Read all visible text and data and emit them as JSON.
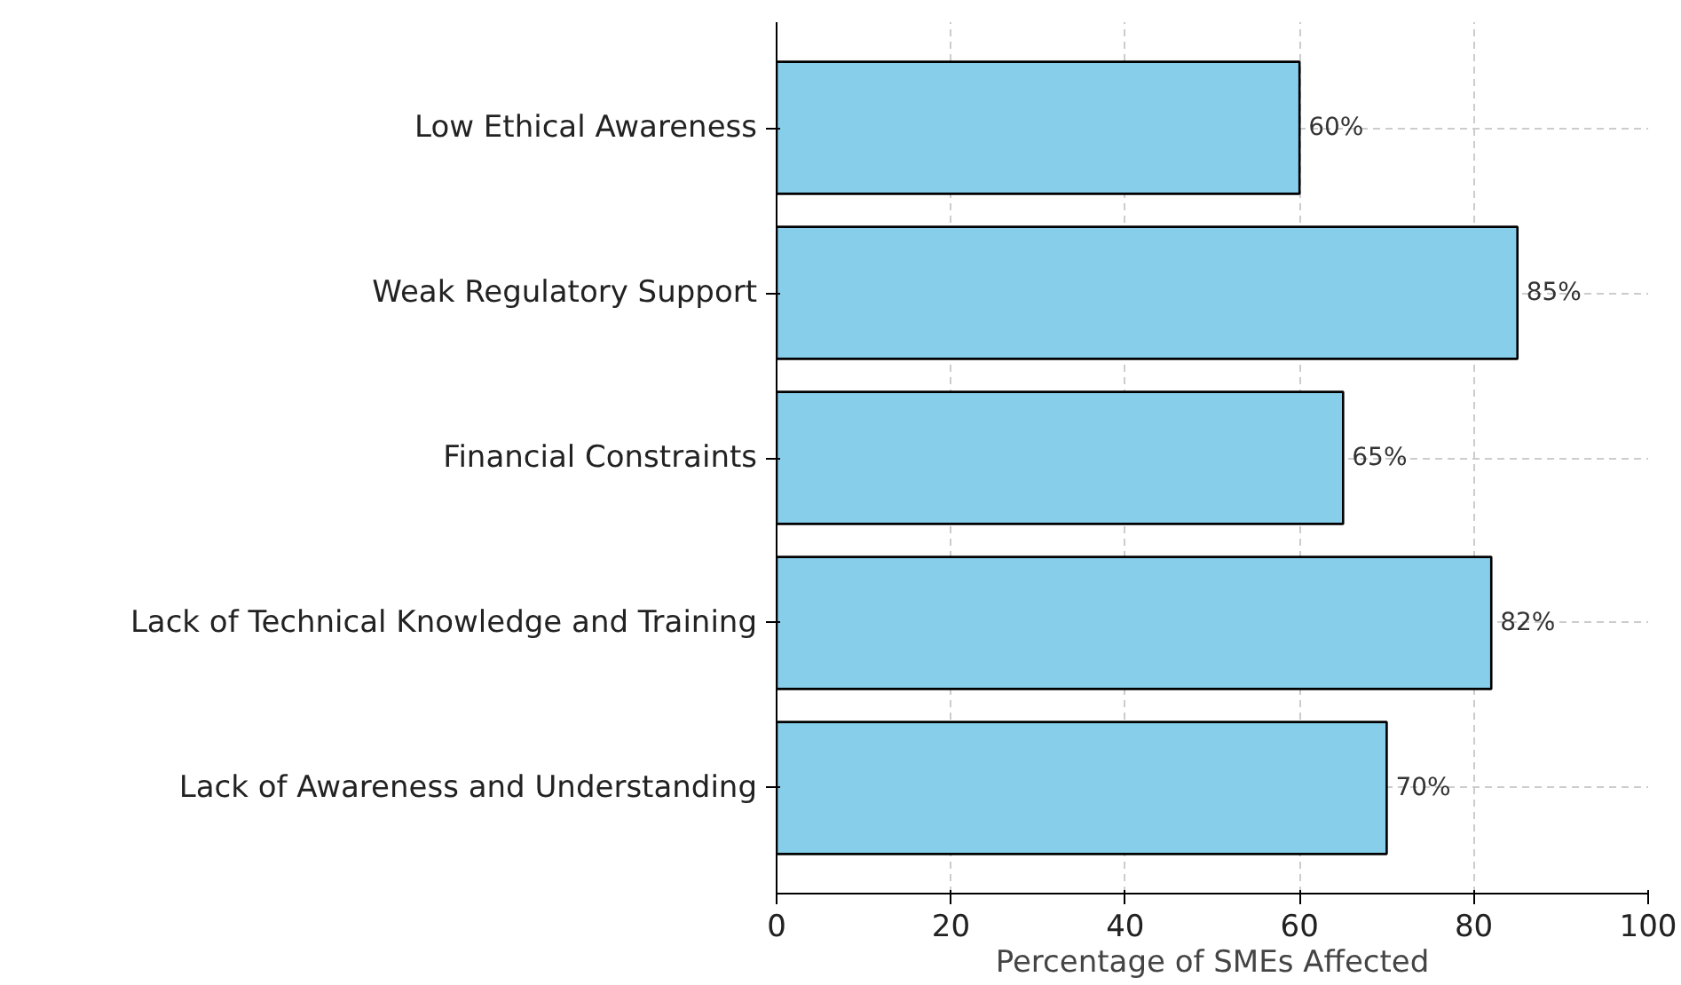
{
  "chart_data": {
    "type": "bar",
    "orientation": "horizontal",
    "xlabel": "Percentage of SMEs Affected",
    "categories": [
      "Low Ethical Awareness",
      "Weak Regulatory Support",
      "Financial Constraints",
      "Lack of Technical Knowledge and Training",
      "Lack of Awareness and Understanding"
    ],
    "values": [
      60,
      85,
      65,
      82,
      70
    ],
    "value_labels": [
      "60%",
      "85%",
      "65%",
      "82%",
      "70%"
    ],
    "color": "#87ceeb",
    "xlim": [
      0,
      100
    ],
    "xticks": [
      0,
      20,
      40,
      60,
      80,
      100
    ],
    "grid": true
  }
}
